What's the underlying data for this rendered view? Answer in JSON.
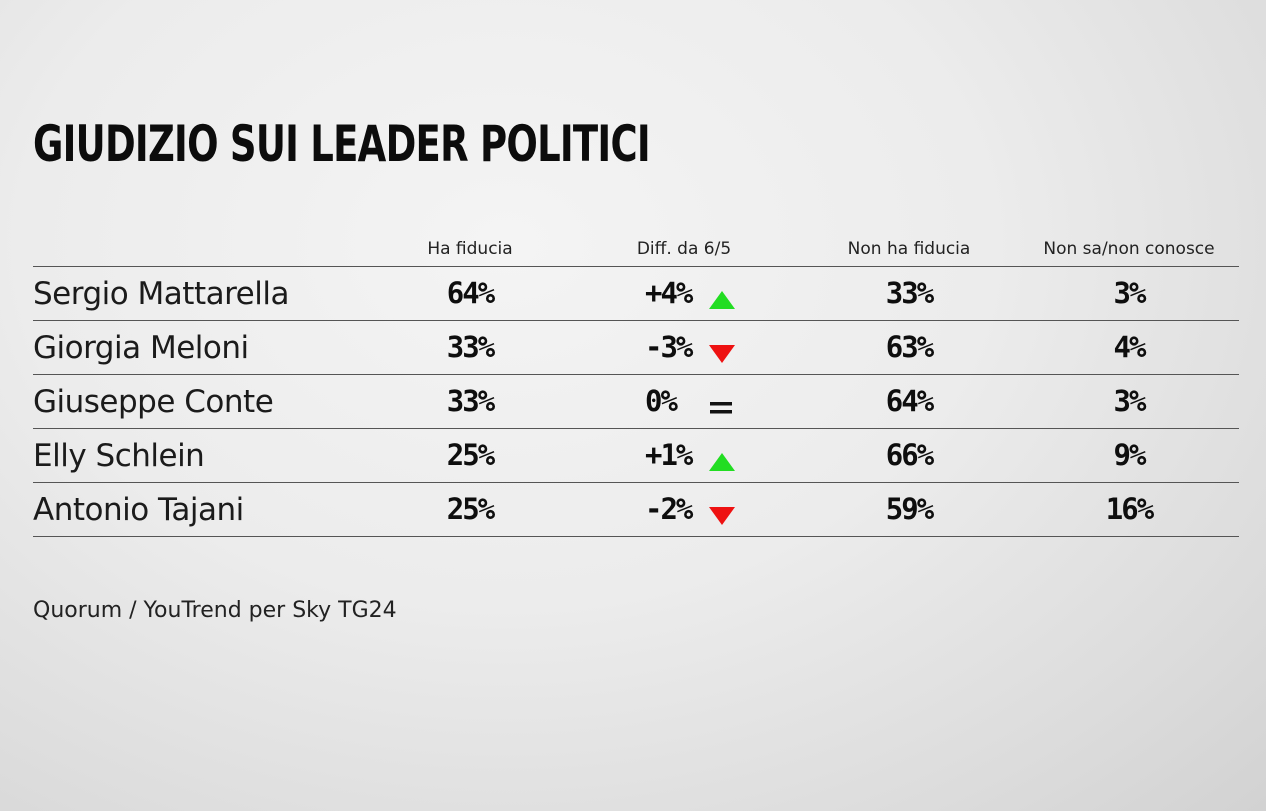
{
  "title": "GIUDIZIO SUI LEADER POLITICI",
  "source": "Quorum / YouTrend per Sky TG24",
  "colors": {
    "up": "#22dd22",
    "down": "#ee1111",
    "rule": "#555555"
  },
  "chart_data": {
    "type": "table",
    "columns": [
      "Ha fiducia",
      "Diff. da 6/5",
      "Non ha fiducia",
      "Non sa/non conosce"
    ],
    "rows": [
      {
        "name": "Sergio Mattarella",
        "ha_fiducia": "64%",
        "diff": "+4%",
        "trend": "up",
        "non_ha_fiducia": "33%",
        "non_sa": "3%"
      },
      {
        "name": "Giorgia Meloni",
        "ha_fiducia": "33%",
        "diff": "-3%",
        "trend": "down",
        "non_ha_fiducia": "63%",
        "non_sa": "4%"
      },
      {
        "name": "Giuseppe Conte",
        "ha_fiducia": "33%",
        "diff": "0%",
        "trend": "same",
        "non_ha_fiducia": "64%",
        "non_sa": "3%"
      },
      {
        "name": "Elly Schlein",
        "ha_fiducia": "25%",
        "diff": "+1%",
        "trend": "up",
        "non_ha_fiducia": "66%",
        "non_sa": "9%"
      },
      {
        "name": "Antonio Tajani",
        "ha_fiducia": "25%",
        "diff": "-2%",
        "trend": "down",
        "non_ha_fiducia": "59%",
        "non_sa": "16%"
      }
    ]
  }
}
